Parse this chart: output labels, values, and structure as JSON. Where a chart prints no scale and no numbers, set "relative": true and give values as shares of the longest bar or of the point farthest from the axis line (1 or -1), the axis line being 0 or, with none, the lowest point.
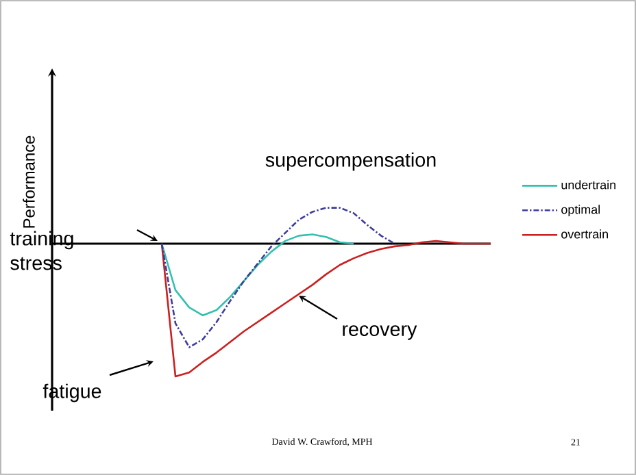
{
  "chart_data": {
    "type": "line",
    "relative": true,
    "legend": "right",
    "categories": [
      null,
      null,
      null,
      null,
      null,
      null,
      null,
      null,
      null,
      null,
      null,
      null,
      null,
      null,
      null,
      null,
      null,
      null,
      null,
      null,
      null,
      null,
      null,
      null,
      null
    ],
    "series": [
      {
        "name": "undertrain",
        "color": "#33c0b0",
        "line_style": "solid",
        "values": [
          0,
          -0.35,
          -0.48,
          -0.54,
          -0.5,
          -0.4,
          -0.28,
          -0.16,
          -0.06,
          0.02,
          0.06,
          0.07,
          0.05,
          0.01,
          0,
          null,
          null,
          null,
          null,
          null,
          null,
          null,
          null,
          null,
          null
        ]
      },
      {
        "name": "optimal",
        "color": "#3c3c9c",
        "line_style": "dashdot",
        "values": [
          0,
          -0.6,
          -0.78,
          -0.72,
          -0.59,
          -0.43,
          -0.28,
          -0.15,
          -0.02,
          0.08,
          0.18,
          0.24,
          0.27,
          0.27,
          0.23,
          0.14,
          0.06,
          0,
          null,
          null,
          null,
          null,
          null,
          null,
          null
        ]
      },
      {
        "name": "overtrain",
        "color": "#cc1f1f",
        "line_style": "solid",
        "values": [
          0,
          -1,
          -0.97,
          -0.89,
          -0.82,
          -0.74,
          -0.66,
          -0.59,
          -0.52,
          -0.45,
          -0.38,
          -0.31,
          -0.23,
          -0.16,
          -0.11,
          -0.07,
          -0.04,
          -0.02,
          -0.01,
          0.01,
          0.02,
          0.01,
          0,
          0,
          0
        ]
      }
    ],
    "annotations": [
      "supercompensation",
      "training stress",
      "fatigue",
      "recovery",
      "David W. Crawford, MPH",
      "21",
      "Performance"
    ]
  }
}
